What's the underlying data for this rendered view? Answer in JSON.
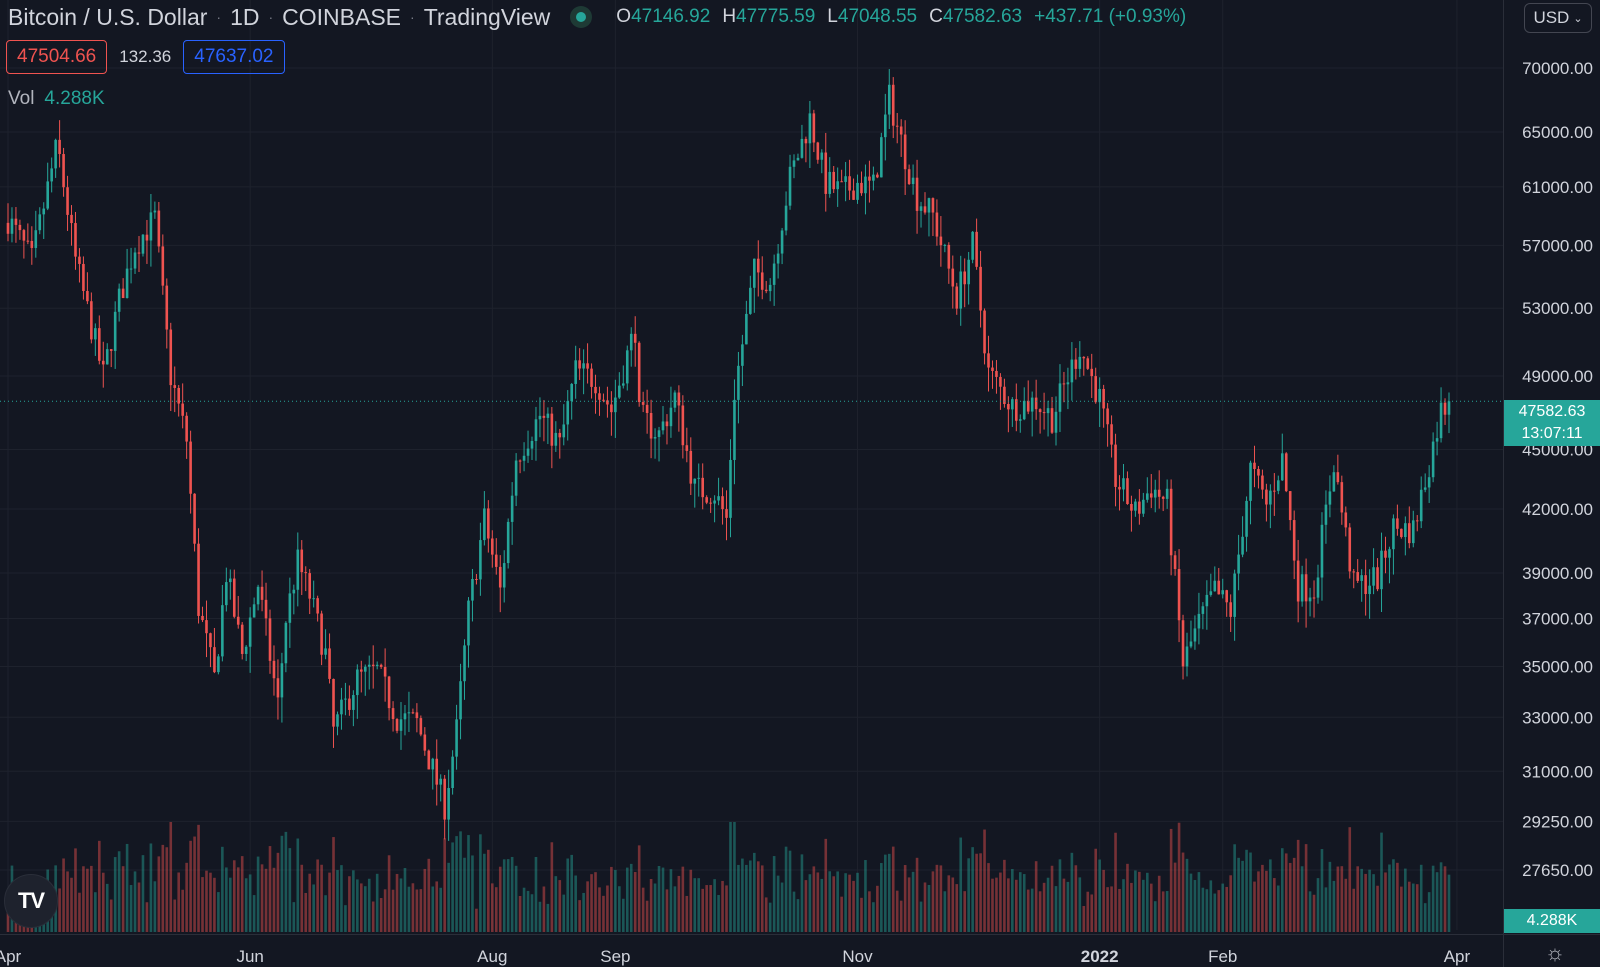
{
  "header": {
    "title": "Bitcoin / U.S. Dollar",
    "interval": "1D",
    "exchange": "COINBASE",
    "source": "TradingView",
    "ohlc": {
      "o_label": "O",
      "o": "47146.92",
      "h_label": "H",
      "h": "47775.59",
      "l_label": "L",
      "l": "47048.55",
      "c_label": "C",
      "c": "47582.63",
      "change": "+437.71 (+0.93%)"
    }
  },
  "quote": {
    "bid": "47504.66",
    "spread": "132.36",
    "ask": "47637.02"
  },
  "volume_legend": {
    "label": "Vol",
    "value": "4.288K"
  },
  "currency": {
    "label": "USD",
    "chevron": "⌄"
  },
  "last_price": {
    "value": "47582.63",
    "countdown": "13:07:11"
  },
  "volume_tag": "4.288K",
  "logo_text": "TV",
  "settings_icon": "☼",
  "colors": {
    "background": "#131722",
    "up": "#26a69a",
    "down": "#ef5350",
    "grid": "#1e222d",
    "axis_text": "#d1d4dc"
  },
  "chart_data": {
    "type": "candlestick",
    "scale": "log",
    "ylim": [
      27000,
      71000
    ],
    "yticks": [
      {
        "value": 70000,
        "label": "70000.00"
      },
      {
        "value": 65000,
        "label": "65000.00"
      },
      {
        "value": 61000,
        "label": "61000.00"
      },
      {
        "value": 57000,
        "label": "57000.00"
      },
      {
        "value": 53000,
        "label": "53000.00"
      },
      {
        "value": 49000,
        "label": "49000.00"
      },
      {
        "value": 45000,
        "label": "45000.00"
      },
      {
        "value": 42000,
        "label": "42000.00"
      },
      {
        "value": 39000,
        "label": "39000.00"
      },
      {
        "value": 37000,
        "label": "37000.00"
      },
      {
        "value": 35000,
        "label": "35000.00"
      },
      {
        "value": 33000,
        "label": "33000.00"
      },
      {
        "value": 31000,
        "label": "31000.00"
      },
      {
        "value": 29250,
        "label": "29250.00"
      },
      {
        "value": 27650,
        "label": "27650.00"
      }
    ],
    "xlim": [
      "2021-04-01",
      "2022-04-02"
    ],
    "xticks": [
      {
        "date": "2021-04-01",
        "label": "Apr"
      },
      {
        "date": "2021-06-01",
        "label": "Jun"
      },
      {
        "date": "2021-08-01",
        "label": "Aug"
      },
      {
        "date": "2021-09-01",
        "label": "Sep"
      },
      {
        "date": "2021-11-01",
        "label": "Nov"
      },
      {
        "date": "2022-01-01",
        "label": "2022"
      },
      {
        "date": "2022-02-01",
        "label": "Feb"
      },
      {
        "date": "2022-04-01",
        "label": "Apr"
      }
    ],
    "close_path": [
      [
        "2021-04-01",
        58800
      ],
      [
        "2021-04-07",
        56000
      ],
      [
        "2021-04-13",
        63500
      ],
      [
        "2021-04-14",
        63000
      ],
      [
        "2021-04-18",
        56000
      ],
      [
        "2021-04-25",
        49000
      ],
      [
        "2021-04-29",
        53500
      ],
      [
        "2021-05-03",
        57000
      ],
      [
        "2021-05-08",
        58800
      ],
      [
        "2021-05-12",
        49000
      ],
      [
        "2021-05-16",
        45500
      ],
      [
        "2021-05-19",
        37500
      ],
      [
        "2021-05-23",
        34500
      ],
      [
        "2021-05-26",
        39000
      ],
      [
        "2021-05-30",
        35500
      ],
      [
        "2021-06-03",
        38500
      ],
      [
        "2021-06-08",
        33500
      ],
      [
        "2021-06-10",
        37000
      ],
      [
        "2021-06-13",
        39500
      ],
      [
        "2021-06-16",
        38000
      ],
      [
        "2021-06-20",
        35500
      ],
      [
        "2021-06-22",
        32500
      ],
      [
        "2021-06-28",
        34500
      ],
      [
        "2021-07-03",
        34800
      ],
      [
        "2021-07-08",
        33000
      ],
      [
        "2021-07-13",
        32800
      ],
      [
        "2021-07-20",
        29800
      ],
      [
        "2021-07-23",
        32500
      ],
      [
        "2021-07-26",
        37300
      ],
      [
        "2021-07-30",
        41500
      ],
      [
        "2021-08-03",
        38200
      ],
      [
        "2021-08-07",
        44600
      ],
      [
        "2021-08-13",
        46800
      ],
      [
        "2021-08-18",
        45200
      ],
      [
        "2021-08-22",
        49300
      ],
      [
        "2021-08-27",
        48800
      ],
      [
        "2021-08-31",
        47100
      ],
      [
        "2021-09-06",
        51800
      ],
      [
        "2021-09-07",
        46800
      ],
      [
        "2021-09-12",
        45800
      ],
      [
        "2021-09-16",
        47800
      ],
      [
        "2021-09-21",
        43000
      ],
      [
        "2021-09-26",
        42800
      ],
      [
        "2021-09-29",
        41500
      ],
      [
        "2021-10-01",
        48100
      ],
      [
        "2021-10-06",
        55300
      ],
      [
        "2021-10-10",
        54700
      ],
      [
        "2021-10-15",
        61600
      ],
      [
        "2021-10-20",
        66000
      ],
      [
        "2021-10-24",
        61300
      ],
      [
        "2021-10-28",
        60600
      ],
      [
        "2021-11-01",
        61300
      ],
      [
        "2021-11-05",
        61000
      ],
      [
        "2021-11-09",
        67600
      ],
      [
        "2021-11-12",
        64300
      ],
      [
        "2021-11-16",
        60300
      ],
      [
        "2021-11-20",
        59000
      ],
      [
        "2021-11-26",
        53700
      ],
      [
        "2021-11-30",
        57000
      ],
      [
        "2021-12-04",
        49200
      ],
      [
        "2021-12-10",
        47300
      ],
      [
        "2021-12-16",
        47600
      ],
      [
        "2021-12-20",
        46700
      ],
      [
        "2021-12-27",
        50700
      ],
      [
        "2022-01-01",
        47700
      ],
      [
        "2022-01-05",
        43500
      ],
      [
        "2022-01-10",
        41800
      ],
      [
        "2022-01-14",
        43100
      ],
      [
        "2022-01-18",
        42300
      ],
      [
        "2022-01-22",
        35100
      ],
      [
        "2022-01-26",
        36800
      ],
      [
        "2022-01-30",
        38200
      ],
      [
        "2022-02-03",
        37300
      ],
      [
        "2022-02-08",
        44000
      ],
      [
        "2022-02-12",
        42200
      ],
      [
        "2022-02-16",
        44500
      ],
      [
        "2022-02-20",
        38400
      ],
      [
        "2022-02-24",
        38300
      ],
      [
        "2022-03-01",
        44400
      ],
      [
        "2022-03-06",
        38400
      ],
      [
        "2022-03-12",
        38800
      ],
      [
        "2022-03-16",
        41100
      ],
      [
        "2022-03-21",
        41000
      ],
      [
        "2022-03-25",
        44300
      ],
      [
        "2022-03-28",
        47100
      ],
      [
        "2022-03-30",
        47582.63
      ]
    ],
    "volume_scale_max": 30,
    "volume_last": "4.288K",
    "last_close": 47582.63
  }
}
